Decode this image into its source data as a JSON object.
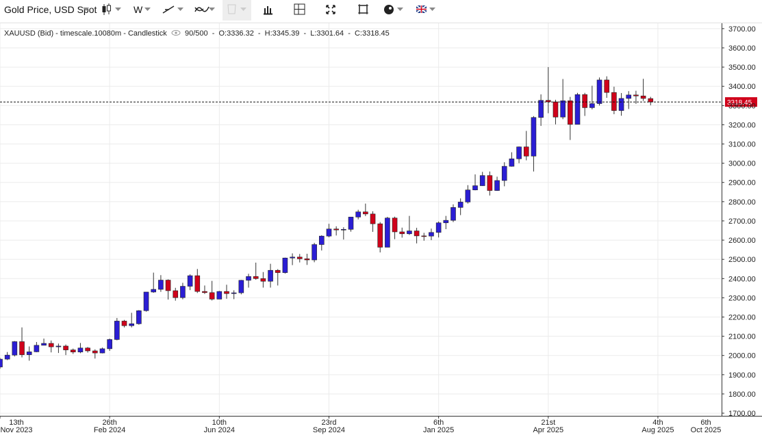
{
  "chart_data": {
    "type": "candlestick",
    "toolbar": {
      "symbol": "Gold Price, USD Spot",
      "interval": "W"
    },
    "header": {
      "instrument": "XAUUSD (Bid) - timescale.10080m - Candlestick",
      "count": "90/500",
      "separator": "-",
      "open_label": "O:",
      "high_label": "H:",
      "low_label": "L:",
      "close_label": "C:"
    },
    "x": [
      "2023-11-13",
      "2023-11-20",
      "2023-11-27",
      "2023-12-04",
      "2023-12-11",
      "2023-12-18",
      "2023-12-25",
      "2024-01-01",
      "2024-01-08",
      "2024-01-15",
      "2024-01-22",
      "2024-01-29",
      "2024-02-05",
      "2024-02-12",
      "2024-02-19",
      "2024-02-26",
      "2024-03-04",
      "2024-03-11",
      "2024-03-18",
      "2024-03-25",
      "2024-04-01",
      "2024-04-08",
      "2024-04-15",
      "2024-04-22",
      "2024-04-29",
      "2024-05-06",
      "2024-05-13",
      "2024-05-20",
      "2024-05-27",
      "2024-06-03",
      "2024-06-10",
      "2024-06-17",
      "2024-06-24",
      "2024-07-01",
      "2024-07-08",
      "2024-07-15",
      "2024-07-22",
      "2024-07-29",
      "2024-08-05",
      "2024-08-12",
      "2024-08-19",
      "2024-08-26",
      "2024-09-02",
      "2024-09-09",
      "2024-09-16",
      "2024-09-23",
      "2024-09-30",
      "2024-10-07",
      "2024-10-14",
      "2024-10-21",
      "2024-10-28",
      "2024-11-04",
      "2024-11-11",
      "2024-11-18",
      "2024-11-25",
      "2024-12-02",
      "2024-12-09",
      "2024-12-16",
      "2024-12-23",
      "2024-12-30",
      "2025-01-06",
      "2025-01-13",
      "2025-01-20",
      "2025-01-27",
      "2025-02-03",
      "2025-02-10",
      "2025-02-17",
      "2025-02-24",
      "2025-03-03",
      "2025-03-10",
      "2025-03-17",
      "2025-03-24",
      "2025-03-31",
      "2025-04-07",
      "2025-04-14",
      "2025-04-21",
      "2025-04-28",
      "2025-05-05",
      "2025-05-12",
      "2025-05-19",
      "2025-05-26",
      "2025-06-02",
      "2025-06-09",
      "2025-06-16",
      "2025-06-23",
      "2025-06-30",
      "2025-07-07",
      "2025-07-14",
      "2025-07-21",
      "2025-07-28"
    ],
    "open": [
      1940,
      1981,
      2002,
      2072,
      2004,
      2019,
      2053,
      2063,
      2045,
      2049,
      2029,
      2018,
      2039,
      2024,
      2013,
      2035,
      2083,
      2179,
      2155,
      2165,
      2233,
      2330,
      2344,
      2392,
      2337,
      2301,
      2360,
      2415,
      2333,
      2327,
      2293,
      2333,
      2322,
      2326,
      2391,
      2411,
      2400,
      2386,
      2443,
      2431,
      2507,
      2512,
      2503,
      2497,
      2577,
      2621,
      2658,
      2653,
      2656,
      2720,
      2747,
      2736,
      2685,
      2563,
      2715,
      2643,
      2633,
      2648,
      2622,
      2621,
      2640,
      2690,
      2703,
      2770,
      2798,
      2861,
      2883,
      2936,
      2858,
      2910,
      2984,
      3023,
      3085,
      3037,
      3238,
      3327,
      3319,
      3240,
      3325,
      3202,
      3357,
      3289,
      3310,
      3433,
      3368,
      3274,
      3337,
      3355,
      3350,
      3336.32
    ],
    "high": [
      1988,
      2018,
      2075,
      2146,
      2047,
      2070,
      2088,
      2078,
      2062,
      2057,
      2036,
      2065,
      2044,
      2032,
      2041,
      2088,
      2195,
      2185,
      2222,
      2236,
      2330,
      2431,
      2418,
      2396,
      2352,
      2378,
      2422,
      2450,
      2364,
      2388,
      2336,
      2368,
      2339,
      2393,
      2425,
      2483,
      2434,
      2477,
      2449,
      2509,
      2531,
      2528,
      2529,
      2586,
      2625,
      2685,
      2672,
      2667,
      2721,
      2758,
      2790,
      2750,
      2694,
      2721,
      2722,
      2665,
      2726,
      2664,
      2638,
      2660,
      2697,
      2726,
      2786,
      2817,
      2886,
      2942,
      2955,
      2957,
      2930,
      3005,
      3057,
      3087,
      3168,
      3245,
      3358,
      3500,
      3330,
      3438,
      3345,
      3366,
      3366,
      3403,
      3446,
      3452,
      3398,
      3365,
      3375,
      3377,
      3439,
      3345.39
    ],
    "low": [
      1931,
      1976,
      1995,
      1990,
      1973,
      2017,
      2053,
      2016,
      2013,
      2002,
      2008,
      2012,
      2015,
      1984,
      2011,
      2024,
      2079,
      2146,
      2146,
      2160,
      2228,
      2326,
      2331,
      2291,
      2285,
      2292,
      2340,
      2325,
      2320,
      2286,
      2293,
      2295,
      2293,
      2318,
      2353,
      2394,
      2353,
      2353,
      2364,
      2426,
      2470,
      2484,
      2471,
      2485,
      2546,
      2615,
      2624,
      2603,
      2644,
      2708,
      2725,
      2643,
      2536,
      2564,
      2605,
      2613,
      2627,
      2583,
      2597,
      2600,
      2614,
      2657,
      2694,
      2730,
      2790,
      2859,
      2882,
      2832,
      2856,
      2880,
      2982,
      3000,
      3015,
      2957,
      3194,
      3260,
      3202,
      3229,
      3121,
      3204,
      3246,
      3280,
      3300,
      3340,
      3255,
      3247,
      3282,
      3309,
      3324,
      3301.64
    ],
    "close": [
      1981,
      2002,
      2072,
      2004,
      2019,
      2053,
      2063,
      2045,
      2049,
      2029,
      2018,
      2039,
      2024,
      2013,
      2035,
      2083,
      2179,
      2155,
      2165,
      2233,
      2330,
      2344,
      2392,
      2337,
      2301,
      2360,
      2415,
      2333,
      2327,
      2293,
      2333,
      2322,
      2326,
      2391,
      2411,
      2400,
      2386,
      2443,
      2431,
      2507,
      2512,
      2503,
      2497,
      2577,
      2621,
      2658,
      2653,
      2656,
      2720,
      2747,
      2736,
      2685,
      2563,
      2715,
      2643,
      2633,
      2648,
      2622,
      2621,
      2640,
      2690,
      2703,
      2770,
      2798,
      2861,
      2883,
      2936,
      2858,
      2910,
      2984,
      3023,
      3085,
      3037,
      3238,
      3327,
      3319,
      3240,
      3325,
      3202,
      3357,
      3289,
      3310,
      3433,
      3368,
      3274,
      3337,
      3355,
      3350,
      3337,
      3318.45
    ],
    "up_color": "#2b1ed4",
    "down_color": "#d0021b",
    "xlim": [
      "2023-11-13",
      "2025-10-04"
    ],
    "xticks": [
      {
        "value": "2023-11-13",
        "label": [
          "13th",
          "Nov 2023"
        ]
      },
      {
        "value": "2024-02-26",
        "label": [
          "26th",
          "Feb 2024"
        ]
      },
      {
        "value": "2024-06-10",
        "label": [
          "10th",
          "Jun 2024"
        ]
      },
      {
        "value": "2024-09-23",
        "label": [
          "23rd",
          "Sep 2024"
        ]
      },
      {
        "value": "2025-01-06",
        "label": [
          "6th",
          "Jan 2025"
        ]
      },
      {
        "value": "2025-04-21",
        "label": [
          "21st",
          "Apr 2025"
        ]
      },
      {
        "value": "2025-08-04",
        "label": [
          "4th",
          "Aug 2025"
        ]
      },
      {
        "value": "2025-10-06",
        "label": [
          "6th",
          "Oct 2025"
        ]
      }
    ],
    "ylim": [
      1686,
      3728
    ],
    "yticks": [
      {
        "value": 1700,
        "label": "1700.00"
      },
      {
        "value": 1800,
        "label": "1800.00"
      },
      {
        "value": 1900,
        "label": "1900.00"
      },
      {
        "value": 2000,
        "label": "2000.00"
      },
      {
        "value": 2100,
        "label": "2100.00"
      },
      {
        "value": 2200,
        "label": "2200.00"
      },
      {
        "value": 2300,
        "label": "2300.00"
      },
      {
        "value": 2400,
        "label": "2400.00"
      },
      {
        "value": 2500,
        "label": "2500.00"
      },
      {
        "value": 2600,
        "label": "2600.00"
      },
      {
        "value": 2700,
        "label": "2700.00"
      },
      {
        "value": 2800,
        "label": "2800.00"
      },
      {
        "value": 2900,
        "label": "2900.00"
      },
      {
        "value": 3000,
        "label": "3000.00"
      },
      {
        "value": 3100,
        "label": "3100.00"
      },
      {
        "value": 3200,
        "label": "3200.00"
      },
      {
        "value": 3300,
        "label": "3300.00"
      },
      {
        "value": 3400,
        "label": "3400.00"
      },
      {
        "value": 3500,
        "label": "3500.00"
      },
      {
        "value": 3600,
        "label": "3600.00"
      },
      {
        "value": 3700,
        "label": "3700.00"
      }
    ],
    "grid": true,
    "price_line": true
  }
}
